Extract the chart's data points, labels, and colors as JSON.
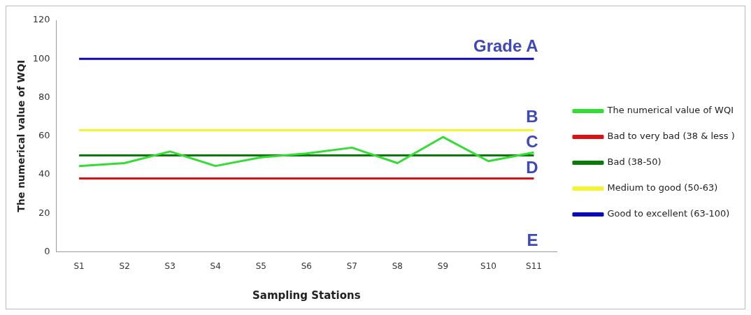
{
  "chart_data": {
    "type": "line",
    "xlabel": "Sampling Stations",
    "ylabel": "The numerical value of WQI",
    "categories": [
      "S1",
      "S2",
      "S3",
      "S4",
      "S5",
      "S6",
      "S7",
      "S8",
      "S9",
      "S10",
      "S11"
    ],
    "series": [
      {
        "name": "The numerical value of WQI",
        "color": "#33dd33",
        "values": [
          44.5,
          46,
          52,
          44.5,
          49,
          51,
          54,
          46,
          59.5,
          47,
          51.5
        ]
      },
      {
        "name": "Bad to very bad (38 & less )",
        "color": "#dd1111",
        "values": [
          38,
          38,
          38,
          38,
          38,
          38,
          38,
          38,
          38,
          38,
          38
        ]
      },
      {
        "name": "Bad (38-50)",
        "color": "#0a7a0a",
        "values": [
          50,
          50,
          50,
          50,
          50,
          50,
          50,
          50,
          50,
          50,
          50
        ]
      },
      {
        "name": "Medium to good (50-63)",
        "color": "#f5f52a",
        "values": [
          63,
          63,
          63,
          63,
          63,
          63,
          63,
          63,
          63,
          63,
          63
        ]
      },
      {
        "name": "Good to excellent (63-100)",
        "color": "#0a0ab4",
        "values": [
          100,
          100,
          100,
          100,
          100,
          100,
          100,
          100,
          100,
          100,
          100
        ]
      }
    ],
    "annotations": [
      "Grade A",
      "B",
      "C",
      "D",
      "E"
    ],
    "ylim": [
      0,
      120
    ],
    "yticks": [
      0,
      20,
      40,
      60,
      80,
      100,
      120
    ],
    "grid": false,
    "legend": "right",
    "marker": "none",
    "line_style": "solid"
  }
}
